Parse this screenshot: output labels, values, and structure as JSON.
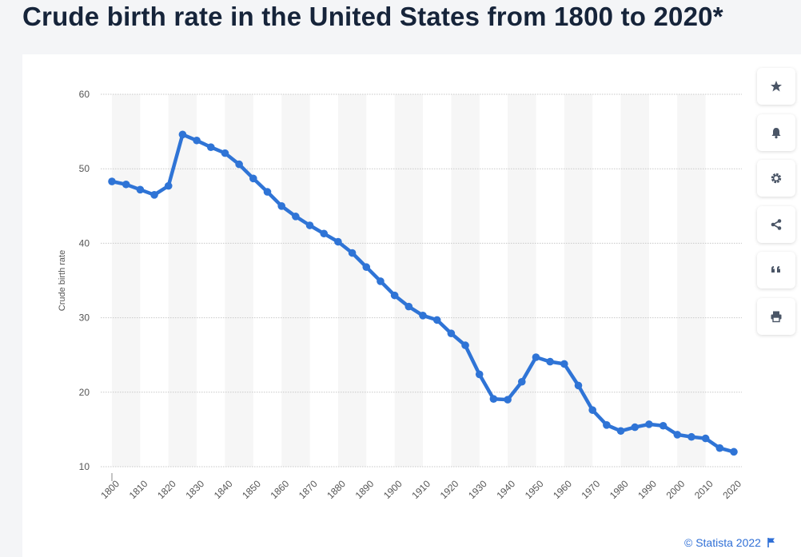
{
  "page": {
    "title": "Crude birth rate in the United States from 1800 to 2020*",
    "copyright": "© Statista 2022"
  },
  "toolbar": {
    "items": [
      {
        "icon": "star-icon",
        "name": "bookmark-button"
      },
      {
        "icon": "bell-icon",
        "name": "notification-button"
      },
      {
        "icon": "gear-icon",
        "name": "settings-button"
      },
      {
        "icon": "share-icon",
        "name": "share-button"
      },
      {
        "icon": "quote-icon",
        "name": "cite-button"
      },
      {
        "icon": "print-icon",
        "name": "print-button"
      }
    ]
  },
  "colors": {
    "line": "#2f74d6",
    "grid": "#c8c8c8",
    "band": "#f6f6f6",
    "title": "#16243a",
    "accent": "#2f6fd6"
  },
  "chart_data": {
    "type": "line",
    "title": "Crude birth rate in the United States from 1800 to 2020*",
    "xlabel": "",
    "ylabel": "Crude birth rate",
    "ylim": [
      10,
      60
    ],
    "yticks": [
      10,
      20,
      30,
      40,
      50,
      60
    ],
    "x_tick_labels": [
      "1800",
      "1810",
      "1820",
      "1830",
      "1840",
      "1850",
      "1860",
      "1870",
      "1880",
      "1890",
      "1900",
      "1910",
      "1920",
      "1930",
      "1940",
      "1950",
      "1960",
      "1970",
      "1980",
      "1990",
      "2000",
      "2010",
      "2020"
    ],
    "grid": true,
    "series": [
      {
        "x": [
          1800,
          1805,
          1810,
          1815,
          1820,
          1825,
          1830,
          1835,
          1840,
          1845,
          1850,
          1855,
          1860,
          1865,
          1870,
          1875,
          1880,
          1885,
          1890,
          1895,
          1900,
          1905,
          1910,
          1915,
          1920,
          1925,
          1930,
          1935,
          1940,
          1945,
          1950,
          1955,
          1960,
          1965,
          1970,
          1975,
          1980,
          1985,
          1990,
          1995,
          2000,
          2005,
          2010,
          2015,
          2020
        ],
        "values": [
          48.3,
          47.9,
          47.2,
          46.5,
          47.7,
          54.6,
          53.8,
          52.9,
          52.1,
          50.6,
          48.7,
          46.9,
          45.0,
          43.6,
          42.4,
          41.3,
          40.2,
          38.7,
          36.8,
          34.9,
          33.0,
          31.5,
          30.3,
          29.7,
          27.9,
          26.3,
          22.4,
          19.1,
          19.0,
          21.4,
          24.7,
          24.1,
          23.8,
          20.9,
          17.6,
          15.6,
          14.8,
          15.3,
          15.7,
          15.5,
          14.3,
          14.0,
          13.8,
          12.5,
          12.0
        ]
      }
    ]
  }
}
